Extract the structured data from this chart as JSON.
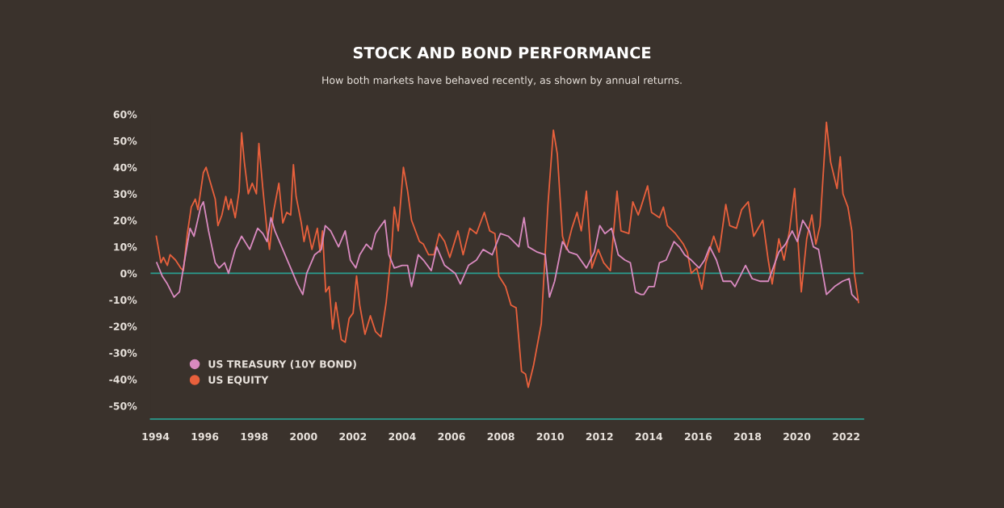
{
  "chart_data": {
    "type": "line",
    "title": "STOCK AND BOND PERFORMANCE",
    "subtitle": "How both markets have behaved recently, as shown by annual returns.",
    "xlim": [
      1993.8,
      2022.7
    ],
    "xticks": [
      1994,
      1996,
      1998,
      2000,
      2002,
      2004,
      2006,
      2008,
      2010,
      2012,
      2014,
      2016,
      2018,
      2020,
      2022
    ],
    "ylim": [
      -55,
      60
    ],
    "yticks": [
      {
        "value": -50,
        "label": "-50%"
      },
      {
        "value": -40,
        "label": "-40%"
      },
      {
        "value": -30,
        "label": "-30%"
      },
      {
        "value": -20,
        "label": "-20%"
      },
      {
        "value": -10,
        "label": "-10%"
      },
      {
        "value": 0,
        "label": "0%"
      },
      {
        "value": 10,
        "label": "10%"
      },
      {
        "value": 20,
        "label": "20%"
      },
      {
        "value": 30,
        "label": "30%"
      },
      {
        "value": 40,
        "label": "40%"
      },
      {
        "value": 50,
        "label": "50%"
      },
      {
        "value": 60,
        "label": "60%"
      }
    ],
    "grid": false,
    "legend": "bottom left",
    "marker": "none",
    "line_style": "solid",
    "ref_lines": [
      {
        "axis": "y",
        "value": 0,
        "label": null,
        "color": "#2a9d8f"
      }
    ],
    "series": [
      {
        "name": "US TREASURY (10Y BOND)",
        "color": "#d98ac0",
        "x": [
          1994.05,
          1994.27,
          1994.48,
          1994.75,
          1994.97,
          1995.18,
          1995.4,
          1995.56,
          1995.83,
          1995.94,
          1996.15,
          1996.42,
          1996.58,
          1996.8,
          1996.96,
          1997.23,
          1997.49,
          1997.82,
          1998.14,
          1998.35,
          1998.52,
          1998.68,
          1998.84,
          1999.16,
          1999.48,
          1999.75,
          1999.97,
          2000.13,
          2000.45,
          2000.72,
          2000.88,
          2001.1,
          2001.42,
          2001.69,
          2001.9,
          2002.12,
          2002.28,
          2002.55,
          2002.76,
          2002.92,
          2003.14,
          2003.3,
          2003.46,
          2003.68,
          2004.0,
          2004.22,
          2004.38,
          2004.65,
          2004.86,
          2005.18,
          2005.4,
          2005.72,
          2006.15,
          2006.36,
          2006.69,
          2007.01,
          2007.28,
          2007.65,
          2007.98,
          2008.3,
          2008.73,
          2008.94,
          2009.11,
          2009.48,
          2009.8,
          2009.97,
          2010.18,
          2010.5,
          2010.77,
          2011.09,
          2011.47,
          2011.79,
          2012.01,
          2012.22,
          2012.49,
          2012.76,
          2013.03,
          2013.25,
          2013.46,
          2013.68,
          2013.79,
          2014.0,
          2014.22,
          2014.43,
          2014.7,
          2015.02,
          2015.24,
          2015.45,
          2015.72,
          2016.04,
          2016.26,
          2016.47,
          2016.74,
          2017.01,
          2017.33,
          2017.49,
          2017.92,
          2018.19,
          2018.52,
          2018.84,
          2019.0,
          2019.27,
          2019.54,
          2019.81,
          2020.02,
          2020.24,
          2020.51,
          2020.67,
          2020.88,
          2021.2,
          2021.53,
          2021.85,
          2022.12,
          2022.23,
          2022.44
        ],
        "values": [
          4,
          -1,
          -4,
          -9,
          -7,
          5,
          17,
          14,
          25,
          27,
          16,
          4,
          2,
          4,
          0,
          9,
          14,
          9,
          17,
          15,
          12,
          21,
          16,
          9,
          2,
          -4,
          -8,
          0,
          7,
          9,
          18,
          16,
          10,
          16,
          5,
          2,
          7,
          11,
          9,
          15,
          18,
          20,
          7,
          2,
          3,
          3,
          -5,
          7,
          5,
          1,
          10,
          3,
          0,
          -4,
          3,
          5,
          9,
          7,
          15,
          14,
          10,
          21,
          10,
          8,
          7,
          -9,
          -3,
          12,
          8,
          7,
          2,
          8,
          18,
          15,
          17,
          7,
          5,
          4,
          -7,
          -8,
          -8,
          -5,
          -5,
          4,
          5,
          12,
          10,
          7,
          5,
          2,
          5,
          10,
          5,
          -3,
          -3,
          -5,
          3,
          -2,
          -3,
          -3,
          1,
          8,
          11,
          16,
          12,
          20,
          16,
          10,
          9,
          -8,
          -5,
          -3,
          -2,
          -8,
          -10
        ]
      },
      {
        "name": "US EQUITY",
        "color": "#e8603c",
        "x": [
          1994.03,
          1994.22,
          1994.32,
          1994.48,
          1994.59,
          1994.81,
          1995.02,
          1995.13,
          1995.29,
          1995.45,
          1995.61,
          1995.72,
          1995.83,
          1995.94,
          1996.05,
          1996.2,
          1996.42,
          1996.53,
          1996.69,
          1996.85,
          1996.96,
          1997.06,
          1997.23,
          1997.39,
          1997.49,
          1997.6,
          1997.76,
          1997.92,
          1998.09,
          1998.19,
          1998.35,
          1998.52,
          1998.62,
          1998.78,
          1999.0,
          1999.16,
          1999.32,
          1999.48,
          1999.59,
          1999.7,
          1999.91,
          2000.02,
          2000.15,
          2000.34,
          2000.56,
          2000.67,
          2000.77,
          2000.9,
          2001.04,
          2001.18,
          2001.31,
          2001.53,
          2001.69,
          2001.85,
          2002.01,
          2002.15,
          2002.28,
          2002.49,
          2002.71,
          2002.92,
          2003.14,
          2003.35,
          2003.57,
          2003.68,
          2003.84,
          2004.05,
          2004.22,
          2004.38,
          2004.7,
          2004.86,
          2005.07,
          2005.29,
          2005.5,
          2005.72,
          2005.93,
          2006.26,
          2006.47,
          2006.74,
          2007.01,
          2007.33,
          2007.55,
          2007.76,
          2007.92,
          2008.19,
          2008.41,
          2008.62,
          2008.84,
          2009.0,
          2009.11,
          2009.32,
          2009.64,
          2009.91,
          2010.13,
          2010.29,
          2010.5,
          2010.66,
          2010.88,
          2011.09,
          2011.26,
          2011.47,
          2011.69,
          2011.95,
          2012.17,
          2012.44,
          2012.71,
          2012.87,
          2013.19,
          2013.35,
          2013.57,
          2013.68,
          2013.95,
          2014.11,
          2014.43,
          2014.59,
          2014.75,
          2015.08,
          2015.4,
          2015.56,
          2015.72,
          2015.94,
          2016.15,
          2016.31,
          2016.63,
          2016.85,
          2017.12,
          2017.28,
          2017.55,
          2017.76,
          2018.03,
          2018.25,
          2018.62,
          2018.84,
          2019.0,
          2019.27,
          2019.48,
          2019.7,
          2019.91,
          2020.18,
          2020.4,
          2020.61,
          2020.77,
          2020.94,
          2021.2,
          2021.37,
          2021.63,
          2021.76,
          2021.87,
          2022.07,
          2022.23,
          2022.33,
          2022.5
        ],
        "values": [
          14,
          4,
          6,
          3,
          7,
          5,
          2,
          1,
          15,
          25,
          28,
          24,
          31,
          38,
          40,
          35,
          28,
          18,
          22,
          29,
          24,
          28,
          21,
          31,
          53,
          42,
          30,
          34,
          30,
          49,
          32,
          16,
          9,
          23,
          34,
          19,
          23,
          22,
          41,
          29,
          19,
          12,
          18,
          9,
          17,
          8,
          16,
          -7,
          -5,
          -21,
          -11,
          -25,
          -26,
          -17,
          -15,
          -1,
          -12,
          -23,
          -16,
          -22,
          -24,
          -11,
          9,
          25,
          16,
          40,
          31,
          20,
          12,
          11,
          7,
          7,
          15,
          12,
          6,
          16,
          7,
          17,
          15,
          23,
          16,
          15,
          -1,
          -5,
          -12,
          -13,
          -37,
          -38,
          -43,
          -35,
          -19,
          26,
          54,
          45,
          14,
          9,
          17,
          23,
          16,
          31,
          2,
          9,
          4,
          1,
          31,
          16,
          15,
          27,
          22,
          25,
          33,
          23,
          21,
          25,
          18,
          15,
          11,
          8,
          0,
          2,
          -6,
          4,
          14,
          8,
          26,
          18,
          17,
          24,
          27,
          14,
          20,
          5,
          -4,
          13,
          5,
          16,
          32,
          -7,
          13,
          22,
          11,
          18,
          57,
          42,
          32,
          44,
          30,
          25,
          16,
          0,
          -11
        ]
      }
    ]
  }
}
